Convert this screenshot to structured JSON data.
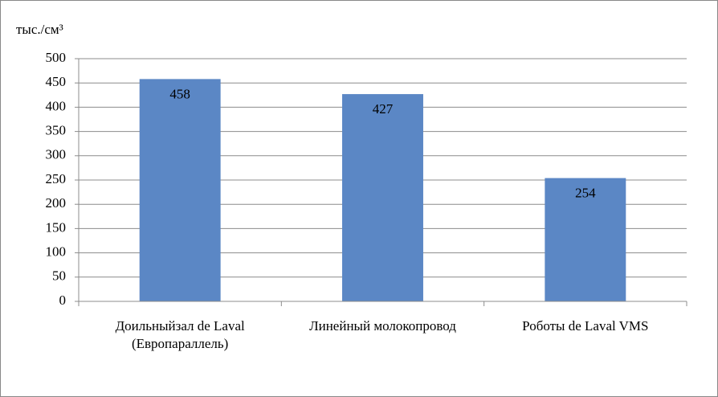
{
  "chart_data": {
    "type": "bar",
    "y_label": "тыс./см³",
    "categories": [
      "Доильныйзал de Laval (Европараллель)",
      "Линейный молокопровод",
      "Роботы de Laval VMS"
    ],
    "values": [
      458,
      427,
      254
    ],
    "color": "#5b87c5",
    "ylim": [
      0,
      500
    ],
    "yticks": [
      0,
      50,
      100,
      150,
      200,
      250,
      300,
      350,
      400,
      450,
      500
    ],
    "grid": true
  }
}
